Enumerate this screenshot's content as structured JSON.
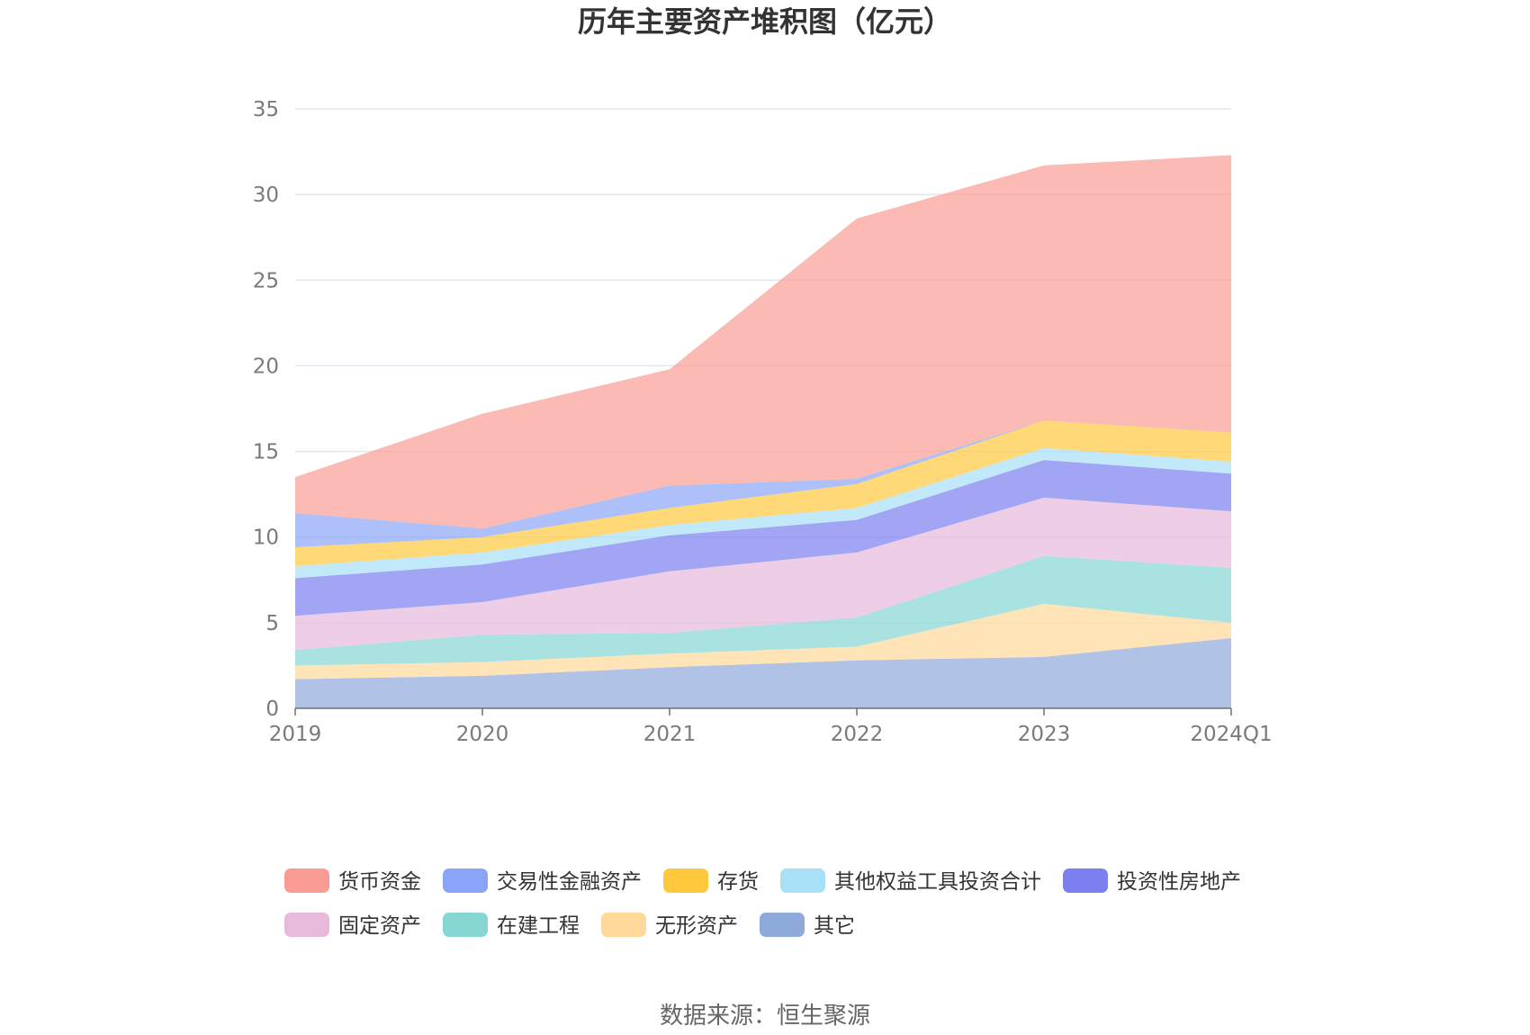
{
  "chart_data": {
    "type": "area",
    "stacked": true,
    "title": "历年主要资产堆积图（亿元）",
    "categories": [
      "2019",
      "2020",
      "2021",
      "2022",
      "2023",
      "2024Q1"
    ],
    "ylim": [
      0,
      35
    ],
    "yticks": [
      0,
      5,
      10,
      15,
      20,
      25,
      30,
      35
    ],
    "grid": true,
    "legend_position": "bottom",
    "series": [
      {
        "name": "其它",
        "color": "#8eaadb",
        "values": [
          1.7,
          1.9,
          2.4,
          2.8,
          3.0,
          4.1
        ]
      },
      {
        "name": "无形资产",
        "color": "#ffd89a",
        "values": [
          0.8,
          0.8,
          0.8,
          0.8,
          3.1,
          0.9
        ]
      },
      {
        "name": "在建工程",
        "color": "#86d6d4",
        "values": [
          0.9,
          1.6,
          1.2,
          1.7,
          2.8,
          3.2
        ]
      },
      {
        "name": "固定资产",
        "color": "#e7b9db",
        "values": [
          2.0,
          1.9,
          3.6,
          3.8,
          3.4,
          3.3
        ]
      },
      {
        "name": "投资性房地产",
        "color": "#7b7ff0",
        "values": [
          2.2,
          2.2,
          2.1,
          1.9,
          2.2,
          2.2
        ]
      },
      {
        "name": "其他权益工具投资合计",
        "color": "#a8e0f7",
        "values": [
          0.7,
          0.7,
          0.6,
          0.7,
          0.7,
          0.7
        ]
      },
      {
        "name": "存货",
        "color": "#ffc83d",
        "values": [
          1.1,
          0.9,
          1.0,
          1.4,
          1.6,
          1.7
        ]
      },
      {
        "name": "交易性金融资产",
        "color": "#8aa5f7",
        "values": [
          2.0,
          0.5,
          1.3,
          0.3,
          0.0,
          0.0
        ]
      },
      {
        "name": "货币资金",
        "color": "#fa9c93",
        "values": [
          2.1,
          6.7,
          6.8,
          15.2,
          14.9,
          16.2
        ]
      }
    ],
    "legend_order": [
      "货币资金",
      "交易性金融资产",
      "存货",
      "其他权益工具投资合计",
      "投资性房地产",
      "固定资产",
      "在建工程",
      "无形资产",
      "其它"
    ]
  },
  "source": "数据来源：恒生聚源"
}
